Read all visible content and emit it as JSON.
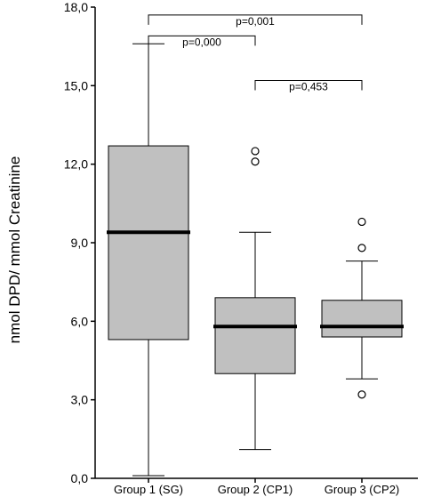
{
  "chart_data": {
    "type": "boxplot",
    "title": "",
    "xlabel": "",
    "ylabel": "nmol DPD/ mmol Creatinine",
    "ylim": [
      0,
      18
    ],
    "yticks": [
      0,
      3,
      6,
      9,
      12,
      15,
      18
    ],
    "ytick_labels": [
      "0,0",
      "3,0",
      "6,0",
      "9,0",
      "12,0",
      "15,0",
      "18,0"
    ],
    "categories": [
      "Group 1 (SG)",
      "Group 2 (CP1)",
      "Group 3 (CP2)"
    ],
    "boxes": [
      {
        "category": "Group 1 (SG)",
        "whisker_low": 0.1,
        "q1": 5.3,
        "median": 9.4,
        "q3": 12.7,
        "whisker_high": 16.6,
        "outliers": []
      },
      {
        "category": "Group 2 (CP1)",
        "whisker_low": 1.1,
        "q1": 4.0,
        "median": 5.8,
        "q3": 6.9,
        "whisker_high": 9.4,
        "outliers": [
          12.1,
          12.5
        ]
      },
      {
        "category": "Group 3 (CP2)",
        "whisker_low": 3.8,
        "q1": 5.4,
        "median": 5.8,
        "q3": 6.8,
        "whisker_high": 8.3,
        "outliers": [
          3.2,
          8.8,
          9.8
        ]
      }
    ],
    "comparisons": [
      {
        "from": 0,
        "to": 2,
        "label": "p=0,001",
        "y": 17.7
      },
      {
        "from": 0,
        "to": 1,
        "label": "p=0,000",
        "y": 16.9
      },
      {
        "from": 1,
        "to": 2,
        "label": "p=0,453",
        "y": 15.2
      }
    ],
    "colors": {
      "box_fill": "#c0c0c0",
      "stroke": "#000000"
    },
    "grid": false
  }
}
